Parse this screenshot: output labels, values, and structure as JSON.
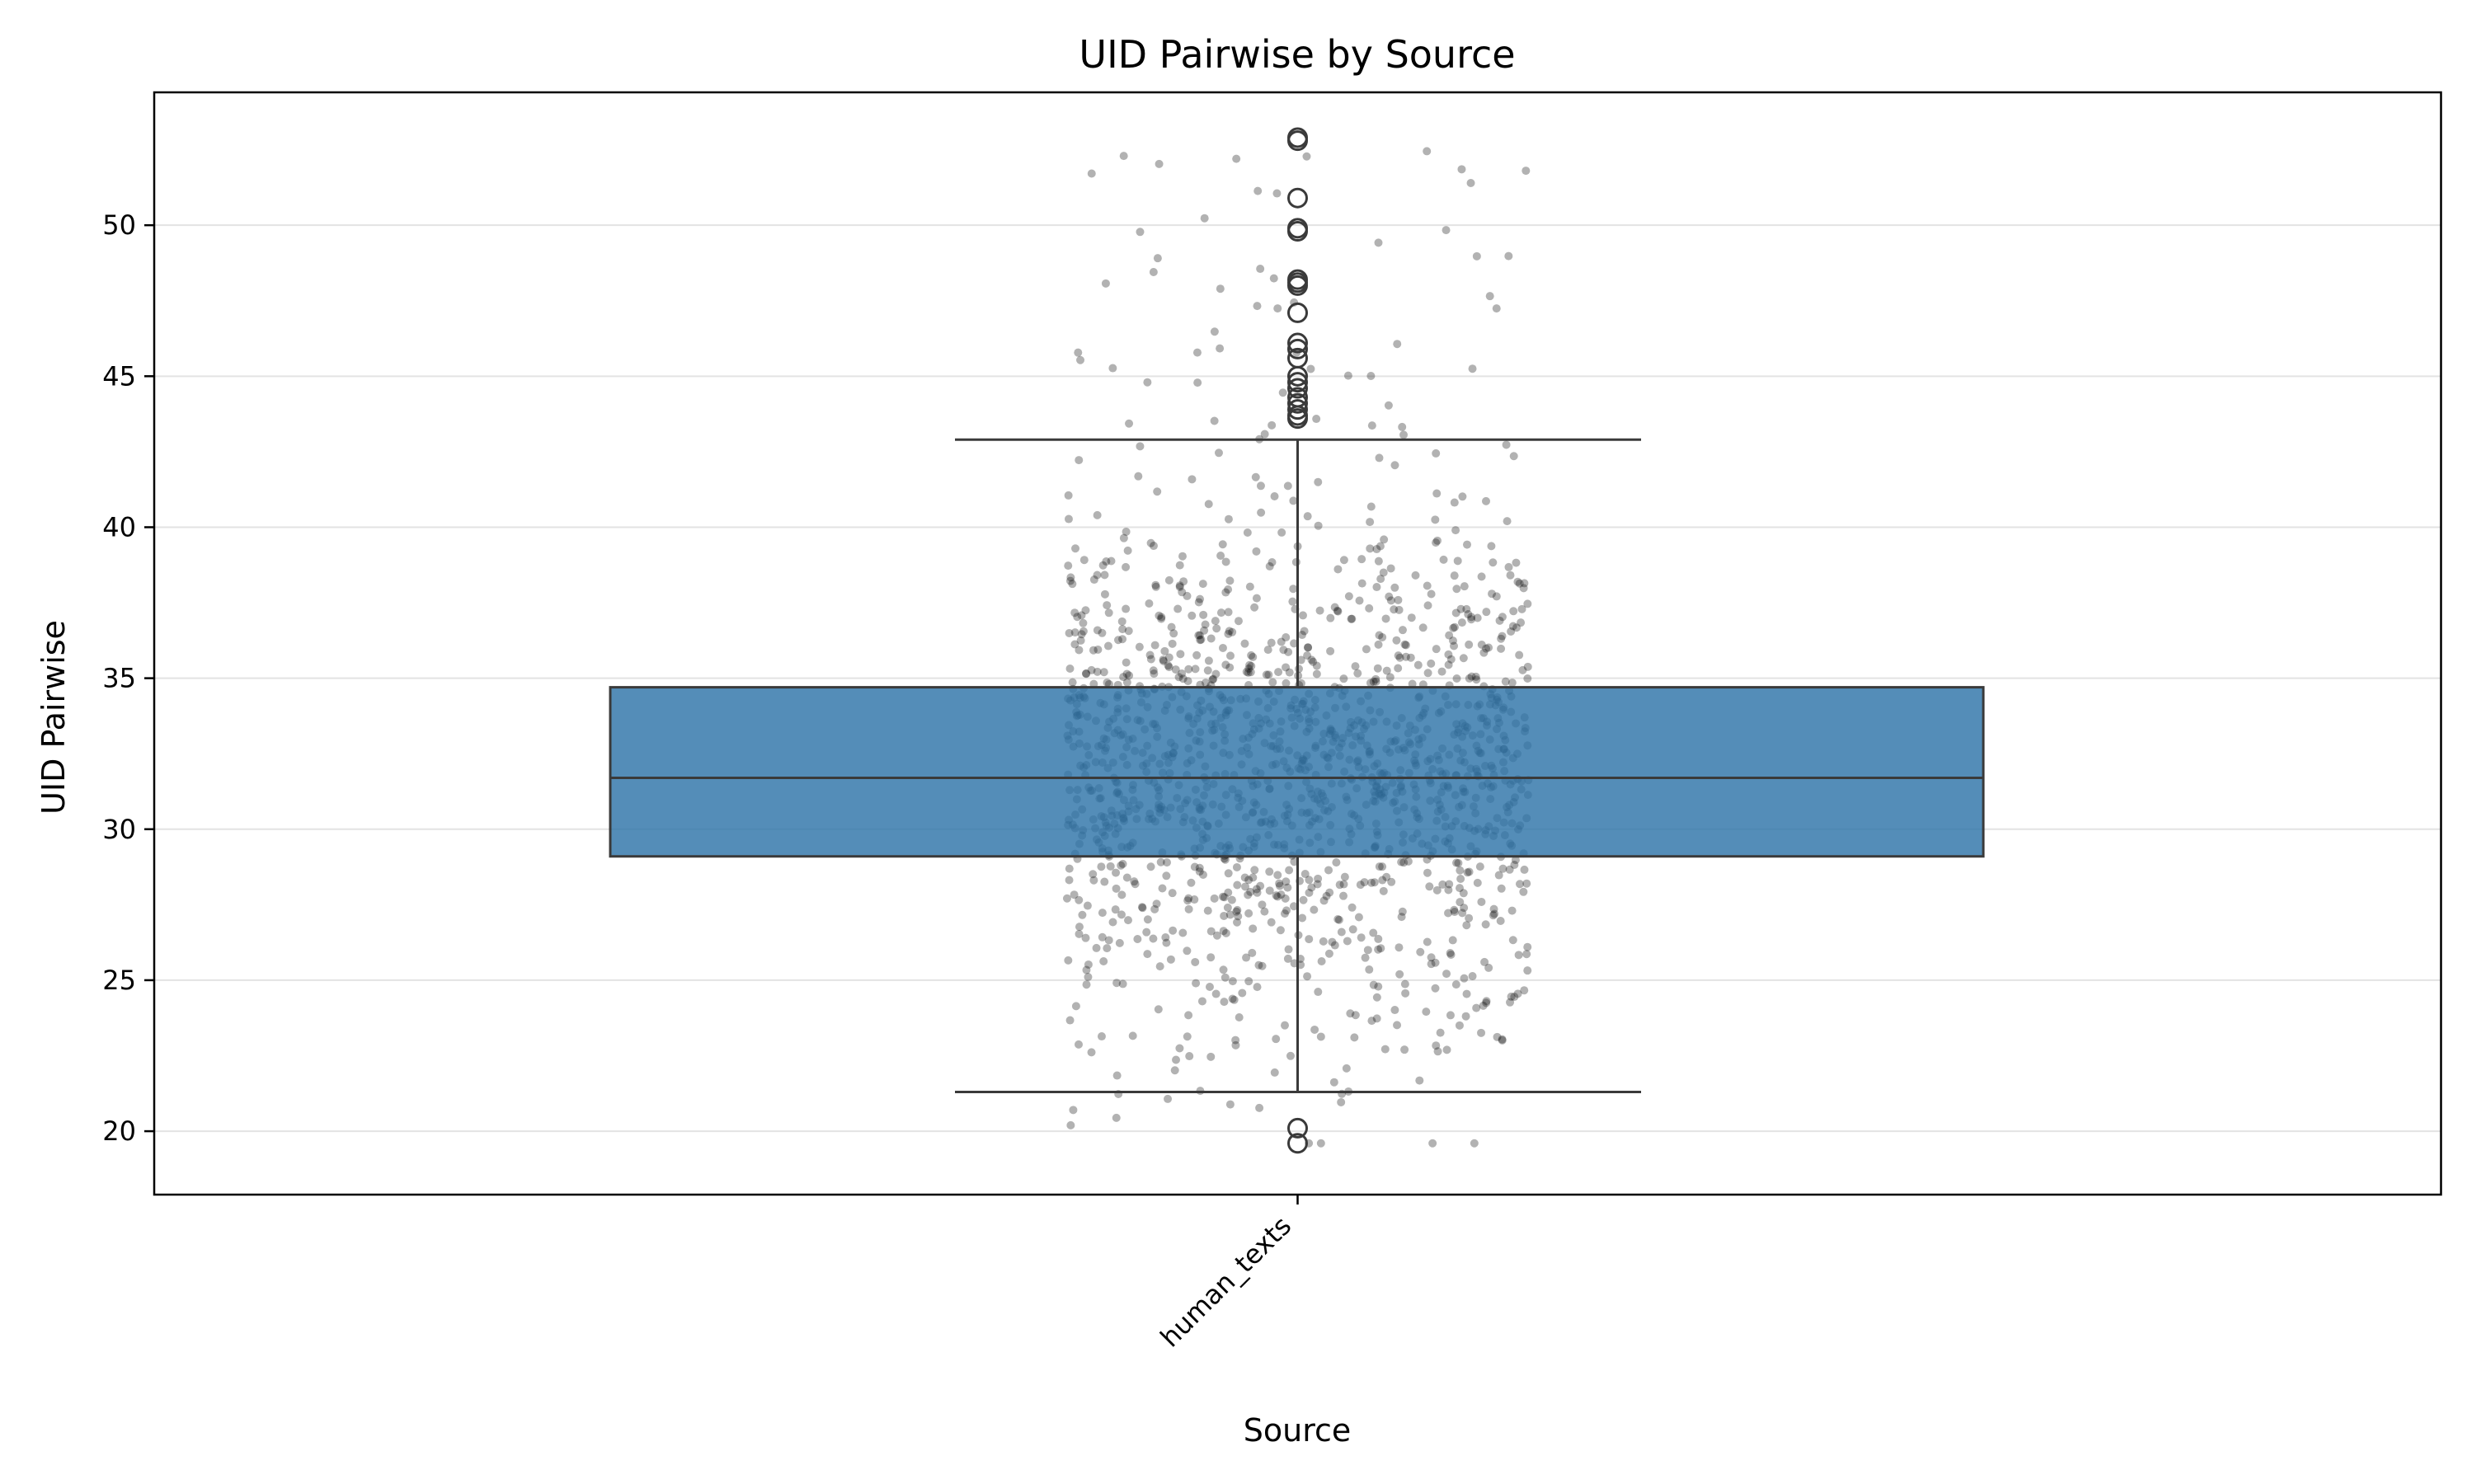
{
  "chart_data": {
    "type": "box",
    "title": "UID Pairwise by Source",
    "xlabel": "Source",
    "ylabel": "UID Pairwise",
    "categories": [
      "human_texts"
    ],
    "ylim": [
      17.9,
      54.4
    ],
    "yticks": [
      20,
      25,
      30,
      35,
      40,
      45,
      50
    ],
    "grid": "y",
    "box": {
      "category": "human_texts",
      "whisker_low": 21.3,
      "q1": 29.1,
      "median": 31.7,
      "q3": 34.7,
      "whisker_high": 42.9,
      "fill_color": "#2e74a8",
      "outliers": [
        52.8,
        52.9,
        50.9,
        49.9,
        49.8,
        48.2,
        48.1,
        48.0,
        47.1,
        46.1,
        45.9,
        45.6,
        45.0,
        44.8,
        44.6,
        44.3,
        44.1,
        43.9,
        43.7,
        43.6,
        20.1,
        19.6
      ]
    },
    "jitter_points": {
      "count": 1500,
      "color": "#000000",
      "opacity": 0.3,
      "note_range": [
        19.6,
        52.9
      ]
    }
  }
}
